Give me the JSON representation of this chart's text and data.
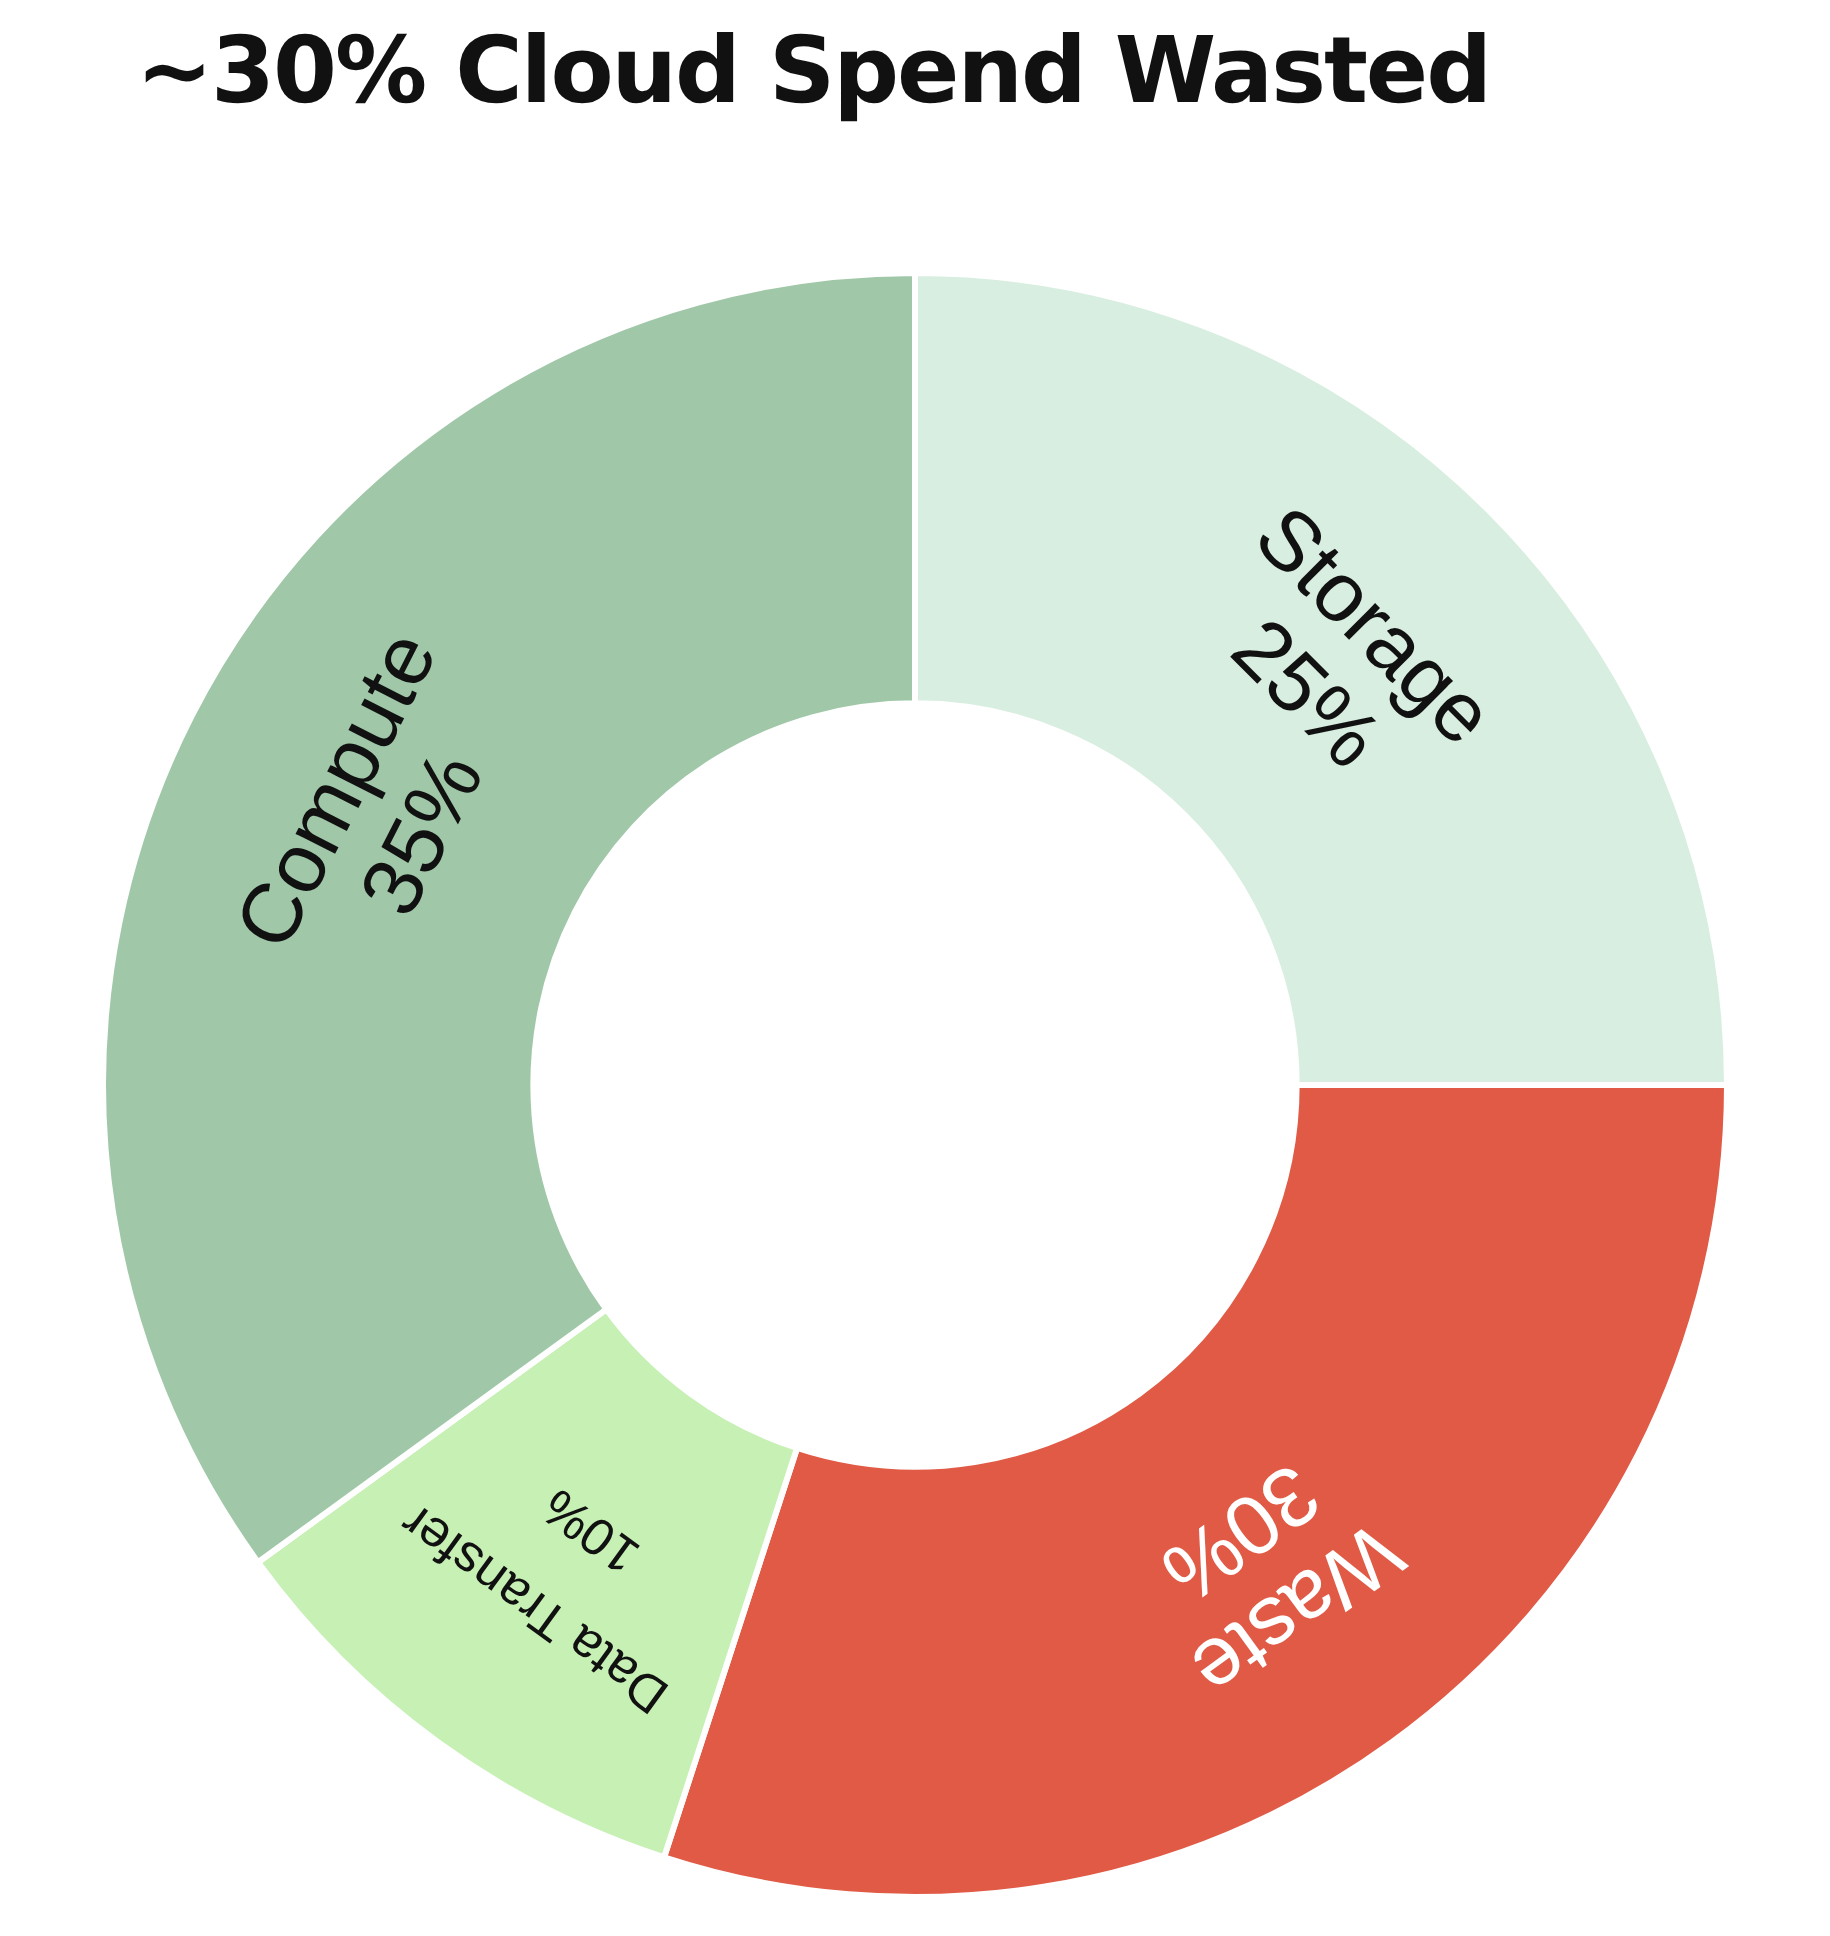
{
  "chart_data": {
    "type": "donut",
    "title": "~30% Cloud Spend Wasted",
    "categories": [
      "Storage",
      "Waste",
      "Data Transfer",
      "Compute"
    ],
    "values": [
      25,
      30,
      10,
      35
    ],
    "colors": [
      "#d8eee0",
      "#e05a46",
      "#c6f0b4",
      "#a0c8a8"
    ],
    "value_labels": [
      "25%",
      "30%",
      "10%",
      "35%"
    ],
    "legend": false
  }
}
